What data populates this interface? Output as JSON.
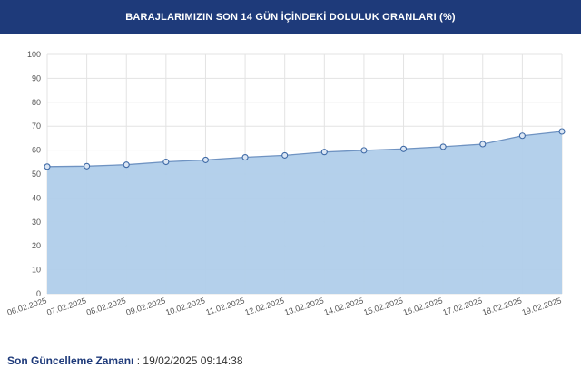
{
  "header": {
    "title": "BARAJLARIMIZIN SON 14 GÜN İÇİNDEKİ DOLULUK ORANLARI (%)"
  },
  "colors": {
    "header_bg": "#1e3a7a",
    "area_fill": "#b0cdea",
    "line": "#6f93c2",
    "grid": "#e3e3e3"
  },
  "chart_data": {
    "type": "area",
    "title": "BARAJLARIMIZIN SON 14 GÜN İÇİNDEKİ DOLULUK ORANLARI (%)",
    "categories": [
      "06.02.2025",
      "07.02.2025",
      "08.02.2025",
      "09.02.2025",
      "10.02.2025",
      "11.02.2025",
      "12.02.2025",
      "13.02.2025",
      "14.02.2025",
      "15.02.2025",
      "16.02.2025",
      "17.02.2025",
      "18.02.2025",
      "19.02.2025"
    ],
    "values": [
      53.1,
      53.3,
      53.9,
      55.1,
      55.9,
      57.0,
      57.8,
      59.2,
      59.9,
      60.5,
      61.4,
      62.5,
      66.0,
      67.8
    ],
    "y_ticks": [
      0,
      10,
      20,
      30,
      40,
      50,
      60,
      70,
      80,
      90,
      100
    ],
    "ylim": [
      0,
      100
    ],
    "grid": true,
    "legend": "none"
  },
  "footer": {
    "label": "Son Güncelleme Zamanı",
    "separator": " : ",
    "value": "19/02/2025 09:14:38"
  }
}
